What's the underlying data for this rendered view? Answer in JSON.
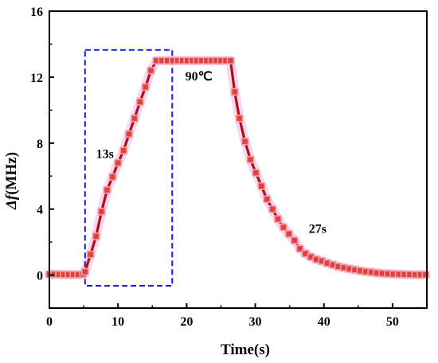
{
  "chart_data": {
    "type": "line",
    "xlabel": "Time(s)",
    "ylabel_symbol": "Δf",
    "ylabel_unit": "(MHz)",
    "xlim": [
      0,
      55
    ],
    "ylim": [
      -2,
      16
    ],
    "xticks": [
      0,
      10,
      20,
      30,
      40,
      50
    ],
    "yticks": [
      0,
      4,
      8,
      12,
      16
    ],
    "grid": false,
    "legend": "none",
    "line_color": "#b01010",
    "marker_color": "#e04040",
    "marker_edge_color": "#f2a0a0",
    "glow_color": "#f0a0e8",
    "series": [
      {
        "x": [
          0,
          0.7,
          1.4,
          2.1,
          2.8,
          3.5,
          4.2,
          4.9,
          5.2,
          6,
          6.8,
          7.6,
          8.4,
          9.2,
          10,
          10.8,
          11.6,
          12.4,
          13.2,
          14,
          14.8,
          15.6,
          16.4,
          17.2,
          18,
          18.7,
          19.4,
          20.1,
          20.8,
          21.5,
          22.2,
          22.9,
          23.6,
          24.3,
          25,
          25.7,
          26.4,
          27,
          27.7,
          28.5,
          29.3,
          30.1,
          30.9,
          31.7,
          32.5,
          33.3,
          34.1,
          34.9,
          35.7,
          36.5,
          37.3,
          38.1,
          38.9,
          39.7,
          40.5,
          41.3,
          42.1,
          42.9,
          43.7,
          44.5,
          45.3,
          46.1,
          46.9,
          47.7,
          48.5,
          49.3,
          50.1,
          50.9,
          51.7,
          52.5,
          53.3,
          54.1,
          54.8
        ],
        "y": [
          0.05,
          0.05,
          0.04,
          0.03,
          0.03,
          0.03,
          0.03,
          0.05,
          0.2,
          1.25,
          2.35,
          3.85,
          5.15,
          5.95,
          6.8,
          7.55,
          8.55,
          9.5,
          10.5,
          11.4,
          12.4,
          13.0,
          13.0,
          13.0,
          13.0,
          13.0,
          13.0,
          13.0,
          13.0,
          13.0,
          13.0,
          13.0,
          13.0,
          13.0,
          13.0,
          13.0,
          13.0,
          11.1,
          9.5,
          8.1,
          7.0,
          6.2,
          5.4,
          4.6,
          4.0,
          3.4,
          2.9,
          2.5,
          2.1,
          1.6,
          1.3,
          1.1,
          0.95,
          0.85,
          0.72,
          0.62,
          0.52,
          0.45,
          0.38,
          0.32,
          0.26,
          0.21,
          0.17,
          0.13,
          0.1,
          0.08,
          0.06,
          0.05,
          0.04,
          0.03,
          0.02,
          0.02,
          0.02
        ]
      }
    ],
    "highlight_box": {
      "x0": 5.2,
      "x1": 17.9,
      "y0": -0.65,
      "y1": 13.65,
      "color": "#1a1adc"
    },
    "annotations": [
      {
        "text": "13s",
        "x": 6.8,
        "y": 7.1
      },
      {
        "text": "90℃",
        "x": 19.8,
        "y": 11.8
      },
      {
        "text": "27s",
        "x": 37.8,
        "y": 2.55
      }
    ]
  }
}
